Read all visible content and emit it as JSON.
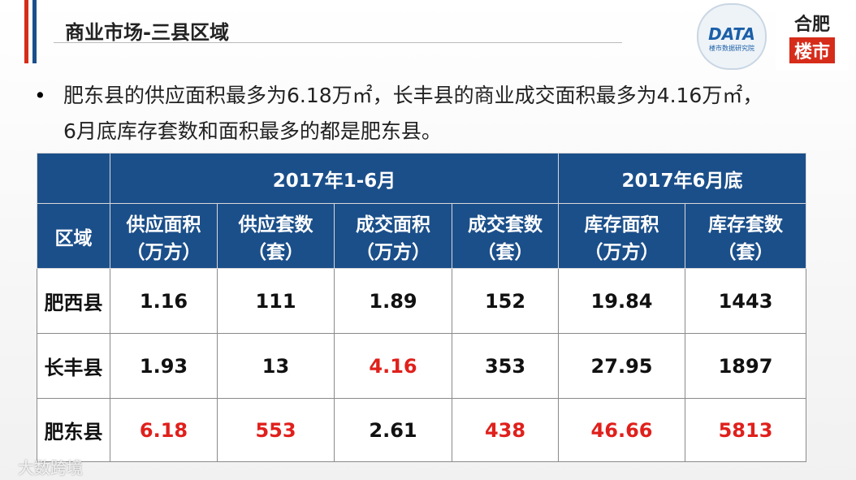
{
  "header": {
    "title": "商业市场-三县区域",
    "logo_text": "DATA",
    "logo_subtext": "楼市数据研究院",
    "brand_top": "合肥",
    "brand_bottom": "楼市"
  },
  "bullet": "肥东县的供应面积最多为6.18万㎡，长丰县的商业成交面积最多为4.16万㎡，6月底库存套数和面积最多的都是肥东县。",
  "table": {
    "group_headers": [
      "2017年1-6月",
      "2017年6月底"
    ],
    "row_header": "区域",
    "columns": [
      {
        "name": "供应面积",
        "unit": "（万方）"
      },
      {
        "name": "供应套数",
        "unit": "（套）"
      },
      {
        "name": "成交面积",
        "unit": "（万方）"
      },
      {
        "name": "成交套数",
        "unit": "（套）"
      },
      {
        "name": "库存面积",
        "unit": "（万方）"
      },
      {
        "name": "库存套数",
        "unit": "（套）"
      }
    ],
    "rows": [
      {
        "region": "肥西县",
        "cells": [
          "1.16",
          "111",
          "1.89",
          "152",
          "19.84",
          "1443"
        ],
        "colors": [
          "#111111",
          "#111111",
          "#111111",
          "#111111",
          "#111111",
          "#111111"
        ]
      },
      {
        "region": "长丰县",
        "cells": [
          "1.93",
          "13",
          "4.16",
          "353",
          "27.95",
          "1897"
        ],
        "colors": [
          "#111111",
          "#111111",
          "#e0201c",
          "#111111",
          "#111111",
          "#111111"
        ]
      },
      {
        "region": "肥东县",
        "cells": [
          "6.18",
          "553",
          "2.61",
          "438",
          "46.66",
          "5813"
        ],
        "colors": [
          "#e0201c",
          "#e0201c",
          "#111111",
          "#e0201c",
          "#e0201c",
          "#e0201c"
        ]
      }
    ]
  },
  "watermark": "大数跨境"
}
